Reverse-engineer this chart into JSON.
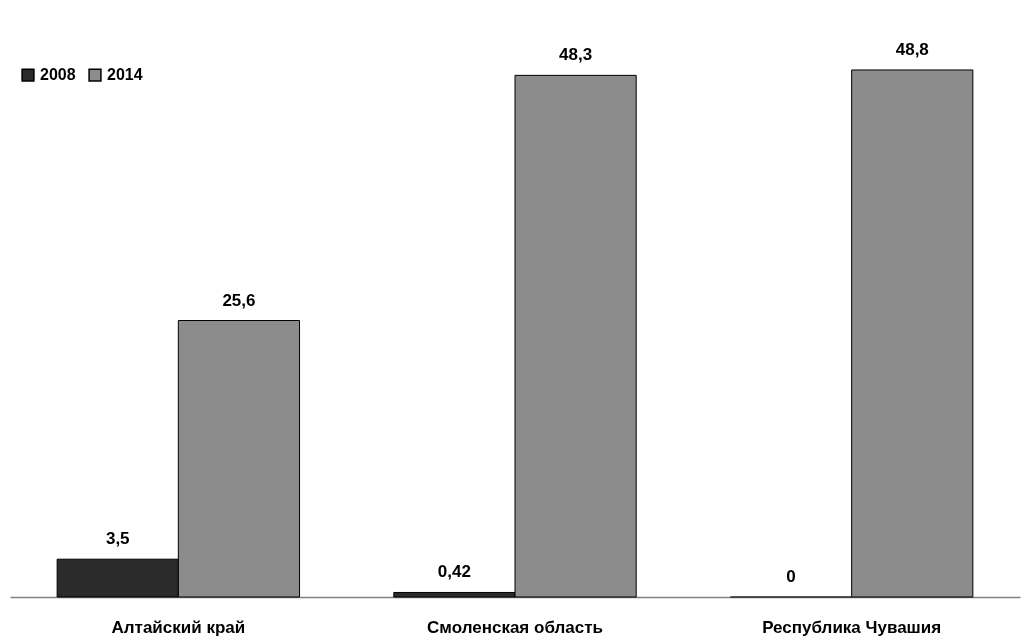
{
  "chart_data": {
    "type": "bar",
    "categories": [
      "Алтайский край",
      "Смоленская область",
      "Республика Чувашия"
    ],
    "series": [
      {
        "name": "2008",
        "color": "#2b2b2b",
        "values": [
          3.5,
          0.42,
          0
        ],
        "value_labels": [
          "3,5",
          "0,42",
          "0"
        ]
      },
      {
        "name": "2014",
        "color": "#8c8c8c",
        "values": [
          25.6,
          48.3,
          48.8
        ],
        "value_labels": [
          "25,6",
          "48,3",
          "48,8"
        ]
      }
    ],
    "legend": "top left"
  }
}
